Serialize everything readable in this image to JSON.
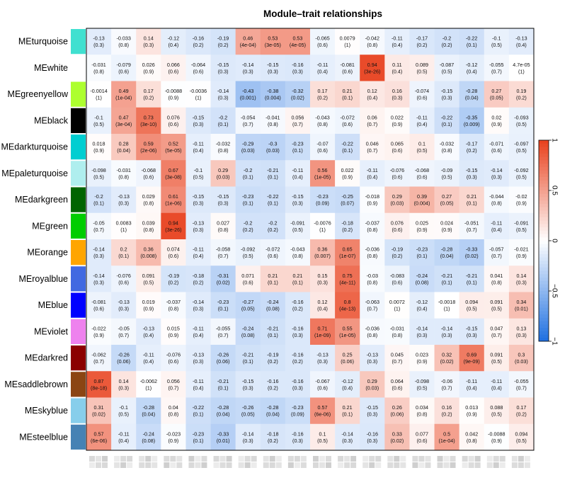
{
  "chart_data": {
    "type": "heatmap",
    "title": "Module–trait relationships",
    "rows": [
      "MEturquoise",
      "MEwhite",
      "MEgreenyellow",
      "MEblack",
      "MEdarkturquoise",
      "MEpaleturquoise",
      "MEdarkgreen",
      "MEgreen",
      "MEorange",
      "MEroyalblue",
      "MEblue",
      "MEviolet",
      "MEdarkred",
      "MEsaddlebrown",
      "MEskyblue",
      "MEsteelblue"
    ],
    "row_colors": [
      "#40e0d0",
      "#ffffff",
      "#adff2f",
      "#000000",
      "#00ced1",
      "#afeeee",
      "#006400",
      "#00cd00",
      "#ffa500",
      "#4169e1",
      "#0000ff",
      "#ee82ee",
      "#8b0000",
      "#8b4513",
      "#87ceeb",
      "#4682b4"
    ],
    "columns": 18,
    "column_labels_visible": false,
    "values": [
      [
        -0.13,
        -0.033,
        0.14,
        -0.12,
        -0.16,
        -0.19,
        0.46,
        0.53,
        0.53,
        -0.065,
        0.0079,
        -0.042,
        -0.11,
        -0.17,
        -0.2,
        -0.22,
        -0.1,
        -0.13
      ],
      [
        -0.031,
        -0.079,
        0.026,
        0.066,
        -0.064,
        -0.15,
        -0.14,
        -0.15,
        -0.16,
        -0.11,
        -0.081,
        0.94,
        0.11,
        0.089,
        -0.087,
        -0.12,
        -0.055,
        "4.7e-05"
      ],
      [
        -0.0014,
        0.49,
        0.17,
        -0.0088,
        -0.0036,
        -0.14,
        -0.43,
        -0.38,
        -0.32,
        0.17,
        0.21,
        0.12,
        0.16,
        -0.074,
        -0.15,
        -0.28,
        0.27,
        0.19
      ],
      [
        -0.1,
        0.47,
        0.73,
        0.076,
        -0.15,
        -0.2,
        -0.054,
        -0.041,
        0.056,
        -0.043,
        -0.072,
        0.06,
        0.022,
        -0.11,
        -0.22,
        -0.35,
        0.02,
        -0.093
      ],
      [
        0.018,
        0.28,
        0.59,
        0.52,
        -0.11,
        -0.032,
        -0.29,
        -0.3,
        -0.23,
        -0.07,
        -0.22,
        0.046,
        0.065,
        0.1,
        -0.032,
        -0.17,
        -0.071,
        -0.097
      ],
      [
        -0.098,
        -0.031,
        -0.068,
        0.67,
        -0.1,
        0.29,
        -0.2,
        -0.21,
        -0.11,
        0.56,
        0.022,
        -0.11,
        -0.076,
        -0.068,
        -0.09,
        -0.15,
        -0.14,
        -0.092
      ],
      [
        -0.2,
        -0.13,
        0.029,
        0.61,
        -0.15,
        -0.15,
        -0.23,
        -0.22,
        -0.15,
        -0.23,
        -0.25,
        -0.018,
        0.29,
        0.39,
        0.27,
        0.21,
        -0.044,
        -0.02
      ],
      [
        -0.05,
        0.0083,
        0.039,
        0.94,
        -0.13,
        0.027,
        -0.2,
        -0.2,
        -0.091,
        -0.0076,
        -0.18,
        -0.037,
        0.076,
        0.025,
        0.024,
        -0.051,
        -0.11,
        -0.091
      ],
      [
        -0.14,
        0.2,
        0.36,
        0.074,
        -0.11,
        -0.058,
        -0.092,
        -0.072,
        -0.043,
        0.36,
        0.65,
        -0.036,
        -0.19,
        -0.23,
        -0.28,
        -0.33,
        -0.057,
        -0.021
      ],
      [
        -0.14,
        -0.076,
        0.091,
        -0.19,
        -0.18,
        -0.31,
        0.071,
        0.21,
        0.21,
        0.15,
        0.75,
        -0.03,
        -0.083,
        -0.24,
        -0.21,
        -0.21,
        0.041,
        0.14
      ],
      [
        -0.081,
        -0.13,
        0.019,
        -0.037,
        -0.14,
        -0.23,
        -0.27,
        -0.24,
        -0.16,
        0.12,
        0.8,
        -0.063,
        0.0072,
        -0.12,
        -0.0018,
        0.094,
        0.091,
        0.34
      ],
      [
        -0.022,
        -0.05,
        -0.13,
        0.015,
        -0.11,
        -0.055,
        -0.24,
        -0.21,
        -0.16,
        0.71,
        0.55,
        -0.036,
        -0.031,
        -0.14,
        -0.14,
        -0.15,
        0.047,
        0.13
      ],
      [
        -0.062,
        -0.26,
        -0.11,
        -0.076,
        -0.13,
        -0.26,
        -0.21,
        -0.19,
        -0.16,
        -0.13,
        0.25,
        -0.13,
        0.045,
        0.023,
        0.32,
        0.69,
        0.091,
        0.3
      ],
      [
        0.87,
        0.14,
        -0.0062,
        0.056,
        -0.11,
        -0.21,
        -0.15,
        -0.16,
        -0.16,
        -0.067,
        -0.12,
        0.29,
        0.064,
        -0.098,
        -0.06,
        -0.11,
        -0.11,
        -0.055
      ],
      [
        0.31,
        -0.1,
        -0.28,
        0.04,
        -0.22,
        -0.28,
        -0.26,
        -0.28,
        -0.23,
        0.57,
        0.21,
        -0.15,
        0.26,
        0.034,
        0.16,
        0.013,
        0.088,
        0.17
      ],
      [
        0.57,
        -0.11,
        -0.24,
        -0.023,
        -0.23,
        -0.33,
        -0.14,
        -0.18,
        -0.16,
        0.1,
        -0.14,
        -0.16,
        0.33,
        0.077,
        0.5,
        0.042,
        -0.0088,
        0.094
      ]
    ],
    "pvalues": [
      [
        "0.3",
        "0.8",
        "0.3",
        "0.4",
        "0.2",
        "0.2",
        "4e-04",
        "3e-05",
        "4e-05",
        "0.6",
        "1",
        "0.8",
        "0.4",
        "0.2",
        "0.2",
        "0.1",
        "0.5",
        "0.4"
      ],
      [
        "0.8",
        "0.6",
        "0.9",
        "0.6",
        "0.6",
        "0.3",
        "0.3",
        "0.3",
        "0.3",
        "0.4",
        "0.6",
        "3e-26",
        "0.4",
        "0.5",
        "0.5",
        "0.4",
        "0.7",
        "1"
      ],
      [
        "1",
        "1e-04",
        "0.2",
        "0.9",
        "1",
        "0.3",
        "0.001",
        "0.004",
        "0.02",
        "0.2",
        "0.1",
        "0.4",
        "0.3",
        "0.6",
        "0.3",
        "0.04",
        "0.05",
        "0.2"
      ],
      [
        "0.5",
        "3e-04",
        "3e-10",
        "0.6",
        "0.3",
        "0.1",
        "0.7",
        "0.8",
        "0.7",
        "0.8",
        "0.6",
        "0.7",
        "0.9",
        "0.4",
        "0.1",
        "0.009",
        "0.9",
        "0.5"
      ],
      [
        "0.9",
        "0.04",
        "2e-06",
        "5e-05",
        "0.4",
        "0.8",
        "0.03",
        "0.03",
        "0.1",
        "0.6",
        "0.1",
        "0.7",
        "0.6",
        "0.5",
        "0.8",
        "0.2",
        "0.6",
        "0.5"
      ],
      [
        "0.5",
        "0.8",
        "0.6",
        "3e-08",
        "0.5",
        "0.03",
        "0.1",
        "0.1",
        "0.4",
        "1e-05",
        "0.9",
        "0.4",
        "0.6",
        "0.6",
        "0.5",
        "0.3",
        "0.3",
        "0.5"
      ],
      [
        "0.1",
        "0.3",
        "0.8",
        "1e-06",
        "0.3",
        "0.3",
        "0.1",
        "0.1",
        "0.3",
        "0.09",
        "0.07",
        "0.9",
        "0.03",
        "0.004",
        "0.05",
        "0.1",
        "0.8",
        "0.9"
      ],
      [
        "0.7",
        "1",
        "0.8",
        "3e-26",
        "0.3",
        "0.8",
        "0.2",
        "0.2",
        "0.5",
        "1",
        "0.2",
        "0.8",
        "0.6",
        "0.9",
        "0.9",
        "0.7",
        "0.4",
        "0.5"
      ],
      [
        "0.3",
        "0.1",
        "0.008",
        "0.6",
        "0.4",
        "0.7",
        "0.5",
        "0.6",
        "0.8",
        "0.007",
        "1e-07",
        "0.8",
        "0.2",
        "0.1",
        "0.04",
        "0.02",
        "0.7",
        "0.9"
      ],
      [
        "0.3",
        "0.6",
        "0.5",
        "0.2",
        "0.2",
        "0.02",
        "0.6",
        "0.1",
        "0.1",
        "0.3",
        "4e-11",
        "0.8",
        "0.6",
        "0.08",
        "0.1",
        "0.1",
        "0.8",
        "0.3"
      ],
      [
        "0.6",
        "0.3",
        "0.9",
        "0.8",
        "0.3",
        "0.1",
        "0.05",
        "0.08",
        "0.2",
        "0.4",
        "4e-13",
        "0.7",
        "1",
        "0.4",
        "1",
        "0.5",
        "0.5",
        "0.01"
      ],
      [
        "0.9",
        "0.7",
        "0.4",
        "0.9",
        "0.4",
        "0.7",
        "0.08",
        "0.1",
        "0.3",
        "1e-09",
        "1e-05",
        "0.8",
        "0.8",
        "0.3",
        "0.3",
        "0.3",
        "0.7",
        "0.3"
      ],
      [
        "0.7",
        "0.06",
        "0.4",
        "0.6",
        "0.3",
        "0.06",
        "0.1",
        "0.2",
        "0.2",
        "0.3",
        "0.06",
        "0.3",
        "0.7",
        "0.9",
        "0.02",
        "9e-09",
        "0.5",
        "0.03"
      ],
      [
        "8e-18",
        "0.3",
        "1",
        "0.7",
        "0.4",
        "0.1",
        "0.3",
        "0.2",
        "0.3",
        "0.6",
        "0.4",
        "0.03",
        "0.6",
        "0.5",
        "0.7",
        "0.4",
        "0.4",
        "0.7"
      ],
      [
        "0.02",
        "0.5",
        "0.04",
        "0.8",
        "0.1",
        "0.04",
        "0.05",
        "0.04",
        "0.09",
        "6e-06",
        "0.1",
        "0.3",
        "0.06",
        "0.8",
        "0.2",
        "0.9",
        "0.5",
        "0.2"
      ],
      [
        "6e-06",
        "0.4",
        "0.08",
        "0.9",
        "0.1",
        "0.01",
        "0.3",
        "0.2",
        "0.3",
        "0.5",
        "0.3",
        "0.3",
        "0.02",
        "0.6",
        "1e-04",
        "0.8",
        "0.9",
        "0.5"
      ]
    ],
    "colorbar": {
      "range": [
        -1,
        1
      ],
      "ticks": [
        "1",
        "0.5",
        "0",
        "−0.5",
        "−1"
      ],
      "colors": {
        "negative": "#1e6fe0",
        "zero": "#ffffff",
        "positive": "#e8401c"
      }
    }
  }
}
